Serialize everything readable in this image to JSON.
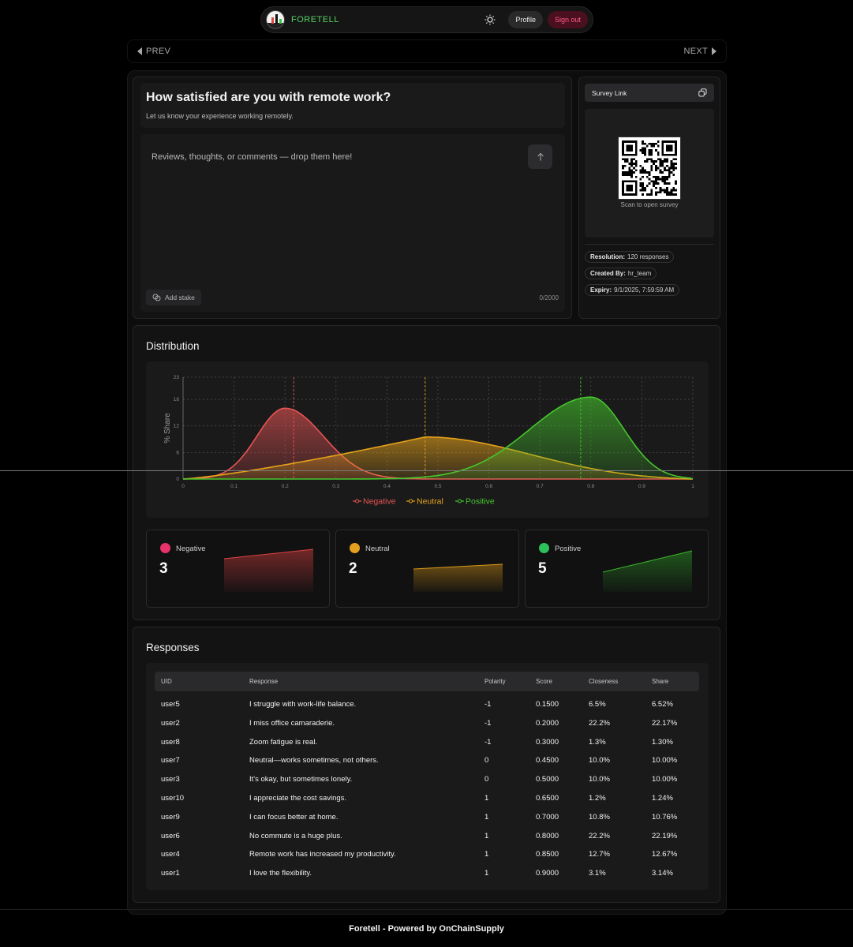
{
  "nav": {
    "brand": "FORETELL",
    "profile": "Profile",
    "signout": "Sign out"
  },
  "pager": {
    "prev": "PREV",
    "next": "NEXT"
  },
  "question": {
    "title": "How satisfied are you with remote work?",
    "subtitle": "Let us know your experience working remotely.",
    "placeholder": "Reviews, thoughts, or comments — drop them here!",
    "add_stake": "Add stake",
    "counter": "0/2000"
  },
  "survey": {
    "link_label": "Survey Link",
    "qr_caption": "Scan to open survey",
    "resolution_label": "Resolution:",
    "resolution_value": "120 responses",
    "created_label": "Created By:",
    "created_value": "hr_team",
    "expiry_label": "Expiry:",
    "expiry_value": "9/1/2025, 7:59:59 AM"
  },
  "distribution": {
    "title": "Distribution",
    "stats": [
      {
        "label": "Negative",
        "value": "3",
        "color": "#e04b4b"
      },
      {
        "label": "Neutral",
        "value": "2",
        "color": "#d9950f"
      },
      {
        "label": "Positive",
        "value": "5",
        "color": "#38b72c"
      }
    ]
  },
  "chart_data": {
    "type": "area",
    "ylabel": "% Share",
    "xlim": [
      0,
      1
    ],
    "ylim": [
      0,
      23
    ],
    "x_ticks": [
      "0",
      "0.1",
      "0.2",
      "0.3",
      "0.4",
      "0.5",
      "0.6",
      "0.7",
      "0.8",
      "0.9",
      "1"
    ],
    "y_ticks": [
      "0",
      "6",
      "12",
      "18",
      "23"
    ],
    "series": [
      {
        "name": "Negative",
        "color": "#e85454",
        "peak_x": 0.2,
        "peak_y": 16,
        "mean_x": 0.217
      },
      {
        "name": "Neutral",
        "color": "#e6a21a",
        "peak_x": 0.475,
        "peak_y": 9.5,
        "mean_x": 0.475
      },
      {
        "name": "Positive",
        "color": "#46c72c",
        "peak_x": 0.8,
        "peak_y": 18.5,
        "mean_x": 0.78
      }
    ],
    "legend": "bottom",
    "grid": true
  },
  "responses": {
    "title": "Responses",
    "columns": [
      "UID",
      "Response",
      "Polarity",
      "Score",
      "Closeness",
      "Share"
    ],
    "rows": [
      [
        "user5",
        "I struggle with work-life balance.",
        "-1",
        "0.1500",
        "6.5%",
        "6.52%"
      ],
      [
        "user2",
        "I miss office camaraderie.",
        "-1",
        "0.2000",
        "22.2%",
        "22.17%"
      ],
      [
        "user8",
        "Zoom fatigue is real.",
        "-1",
        "0.3000",
        "1.3%",
        "1.30%"
      ],
      [
        "user7",
        "Neutral—works sometimes, not others.",
        "0",
        "0.4500",
        "10.0%",
        "10.00%"
      ],
      [
        "user3",
        "It's okay, but sometimes lonely.",
        "0",
        "0.5000",
        "10.0%",
        "10.00%"
      ],
      [
        "user10",
        "I appreciate the cost savings.",
        "1",
        "0.6500",
        "1.2%",
        "1.24%"
      ],
      [
        "user9",
        "I can focus better at home.",
        "1",
        "0.7000",
        "10.8%",
        "10.76%"
      ],
      [
        "user6",
        "No commute is a huge plus.",
        "1",
        "0.8000",
        "22.2%",
        "22.19%"
      ],
      [
        "user4",
        "Remote work has increased my productivity.",
        "1",
        "0.8500",
        "12.7%",
        "12.67%"
      ],
      [
        "user1",
        "I love the flexibility.",
        "1",
        "0.9000",
        "3.1%",
        "3.14%"
      ]
    ]
  },
  "footer": "Foretell - Powered by OnChainSupply"
}
